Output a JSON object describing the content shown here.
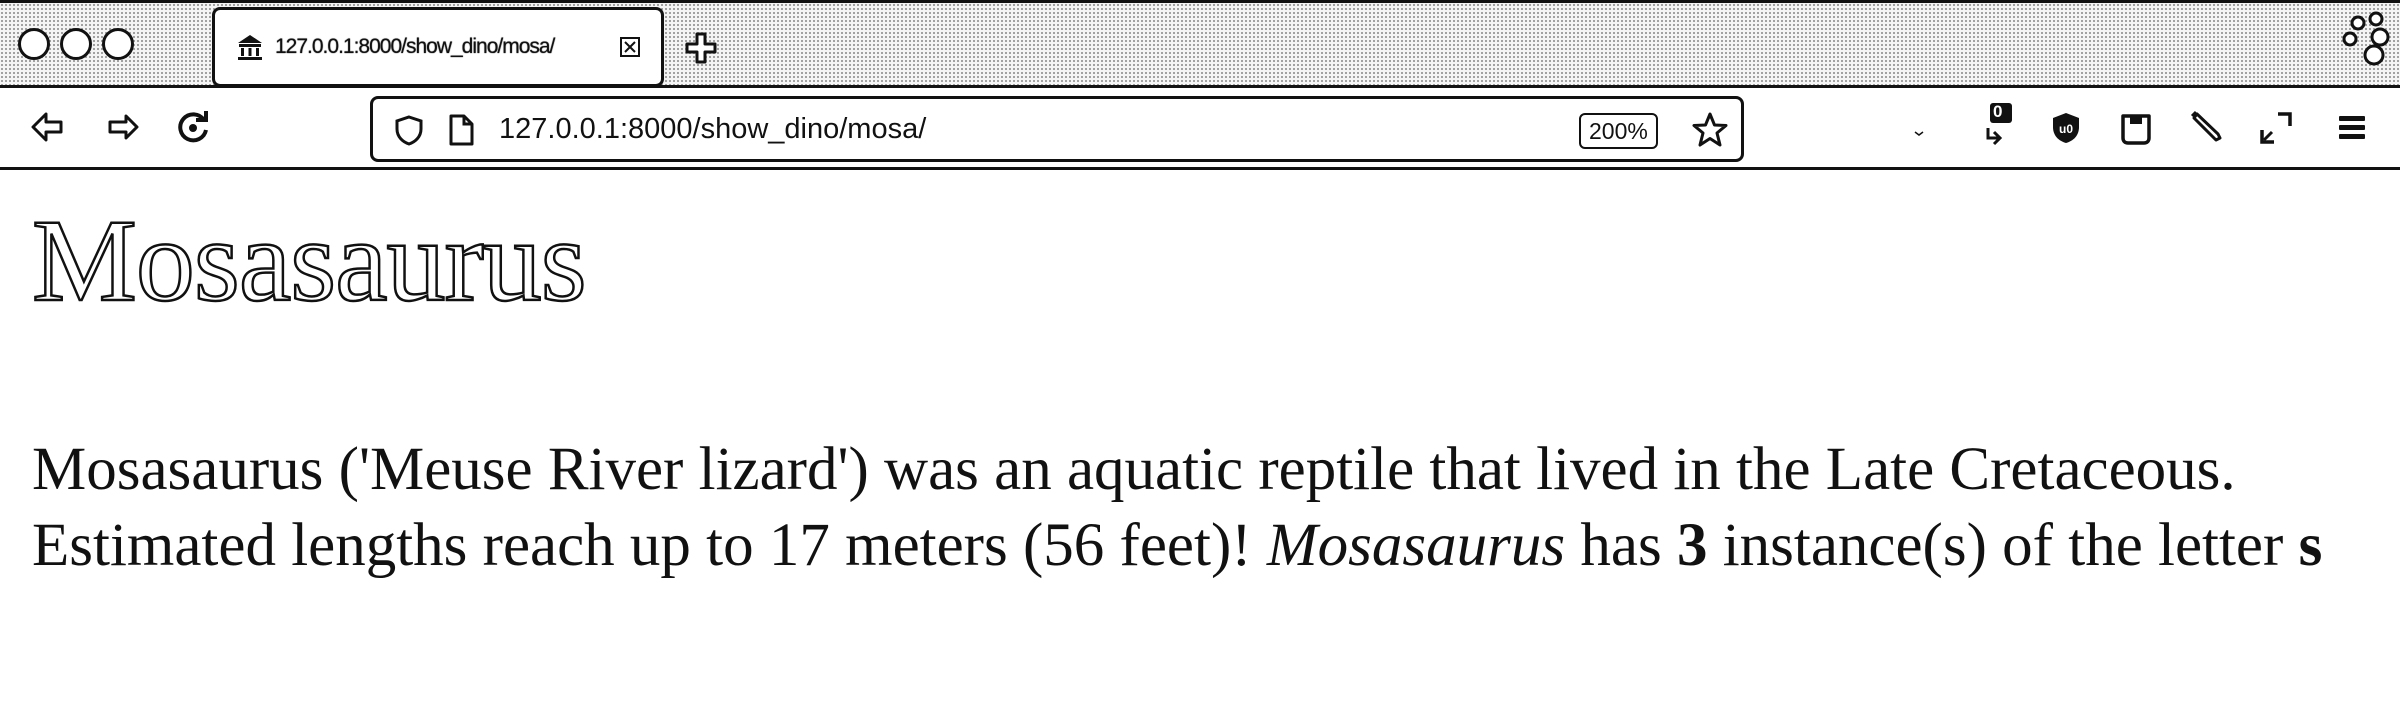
{
  "browser": {
    "tab": {
      "title": "127.0.0.1:8000/show_dino/mosa/"
    },
    "address_bar": {
      "url": "127.0.0.1:8000/show_dino/mosa/",
      "zoom": "200%"
    },
    "icons": [
      "back-icon",
      "forward-icon",
      "reload-icon",
      "shield-icon",
      "page-icon",
      "star-icon",
      "downloads-icon",
      "ublock-icon",
      "pocket-icon",
      "eyedropper-icon",
      "fullscreen-icon",
      "menu-icon",
      "extension-logo-icon"
    ],
    "download_badge": "0"
  },
  "page": {
    "heading": "Mosasaurus",
    "description": {
      "sentence": "Mosasaurus ('Meuse River lizard') was an aquatic reptile that lived in the Late Cretaceous. Estimated lengths reach up to 17 meters (56 feet)! ",
      "name_italic": "Mosasaurus",
      "has_text": " has ",
      "count": "3",
      "instances_text": " instance(s) of the letter ",
      "letter": "s"
    }
  }
}
